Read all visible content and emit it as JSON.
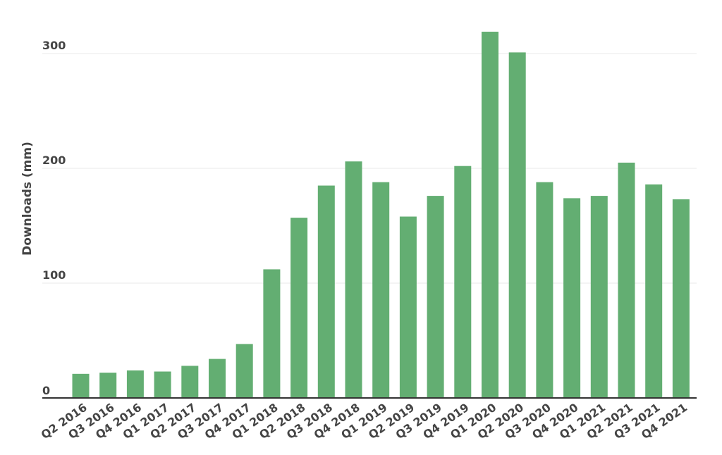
{
  "chart_data": {
    "type": "bar",
    "title": "",
    "xlabel": "",
    "ylabel": "Downloads (mm)",
    "categories": [
      "Q2 2016",
      "Q3 2016",
      "Q4 2016",
      "Q1 2017",
      "Q2 2017",
      "Q3 2017",
      "Q4 2017",
      "Q1 2018",
      "Q2 2018",
      "Q3 2018",
      "Q4 2018",
      "Q1 2019",
      "Q2 2019",
      "Q3 2019",
      "Q4 2019",
      "Q1 2020",
      "Q2 2020",
      "Q3 2020",
      "Q4 2020",
      "Q1 2021",
      "Q2 2021",
      "Q3 2021",
      "Q4 2021"
    ],
    "values": [
      21,
      22,
      24,
      23,
      28,
      34,
      47,
      112,
      157,
      185,
      206,
      188,
      158,
      176,
      202,
      319,
      301,
      188,
      174,
      176,
      205,
      186,
      173
    ],
    "ylim": [
      0,
      320
    ],
    "yticks": [
      0,
      100,
      200,
      300
    ],
    "grid": true,
    "bar_color": "#63ae72",
    "axis_color": "#333333",
    "grid_color": "#e9e9e9"
  }
}
